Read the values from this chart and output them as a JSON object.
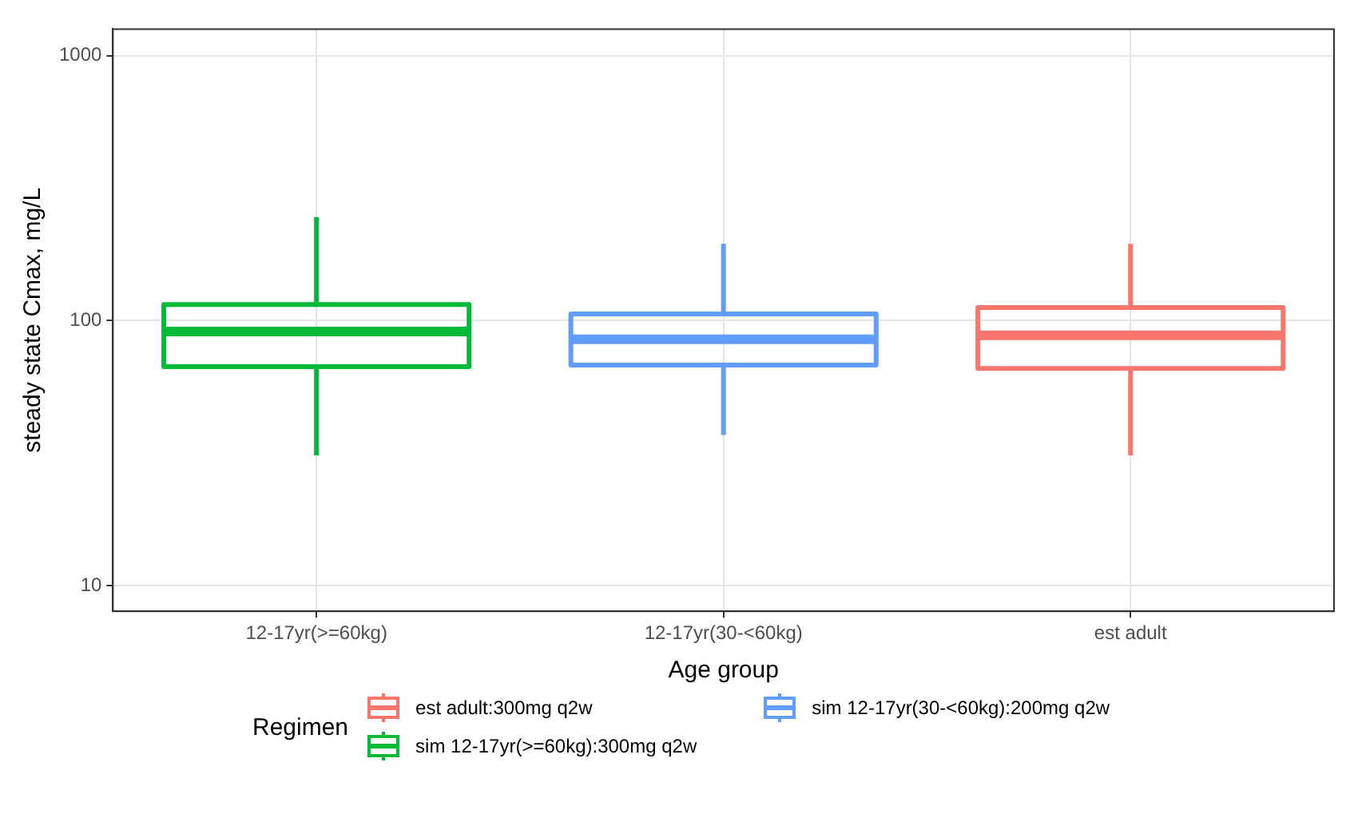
{
  "chart_data": {
    "type": "box",
    "xlabel": "Age group",
    "ylabel": "steady state Cmax, mg/L",
    "legend_title": "Regimen",
    "categories": [
      "12-17yr(>=60kg)",
      "12-17yr(30-<60kg)",
      "est adult"
    ],
    "series": [
      {
        "name": "est adult:300mg q2w",
        "color": "#f8766d",
        "boxes": [
          null,
          null,
          {
            "low": 31,
            "q1": 66,
            "median": 88,
            "q3": 112,
            "high": 195
          }
        ]
      },
      {
        "name": "sim 12-17yr(>=60kg):300mg q2w",
        "color": "#00ba38",
        "boxes": [
          {
            "low": 31,
            "q1": 67,
            "median": 91,
            "q3": 115,
            "high": 246
          },
          null,
          null
        ]
      },
      {
        "name": "sim 12-17yr(30-<60kg):200mg q2w",
        "color": "#619cff",
        "boxes": [
          null,
          {
            "low": 37,
            "q1": 68,
            "median": 85,
            "q3": 106,
            "high": 195
          },
          null
        ]
      }
    ],
    "log": "y",
    "ylim": [
      8,
      1260
    ],
    "yticks": [
      10,
      100,
      1000
    ],
    "grid": true,
    "legend": "bottom"
  }
}
